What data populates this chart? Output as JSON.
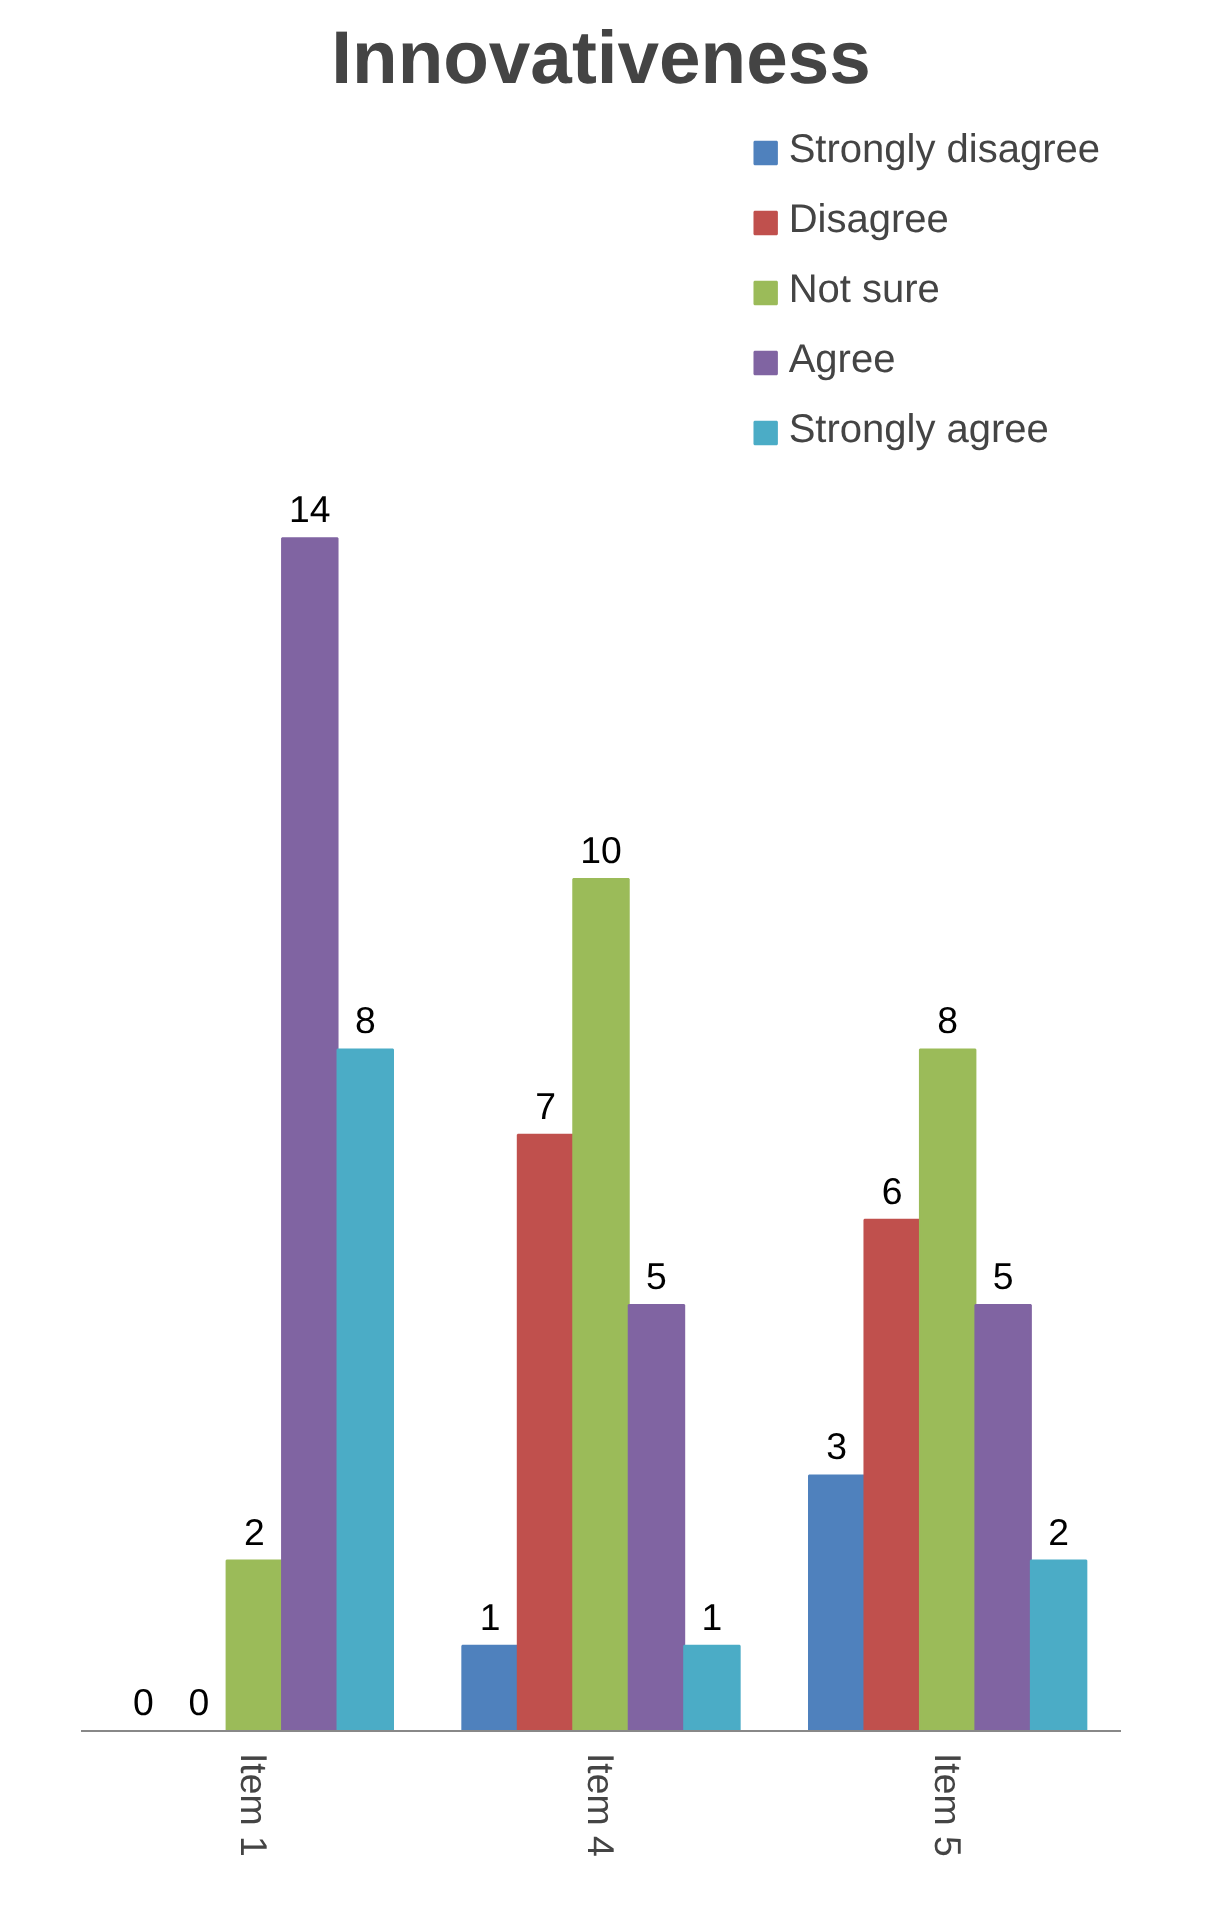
{
  "chart_data": {
    "type": "bar",
    "title": "Innovativeness",
    "categories": [
      "Item 1",
      "Item 4",
      "Item 5"
    ],
    "series": [
      {
        "name": "Strongly disagree",
        "color": "#4f81bd",
        "values": [
          0,
          1,
          3
        ]
      },
      {
        "name": "Disagree",
        "color": "#c0504d",
        "values": [
          0,
          7,
          6
        ]
      },
      {
        "name": "Not sure",
        "color": "#9bbb59",
        "values": [
          2,
          10,
          8
        ]
      },
      {
        "name": "Agree",
        "color": "#8064a2",
        "values": [
          14,
          5,
          5
        ]
      },
      {
        "name": "Strongly agree",
        "color": "#4bacc6",
        "values": [
          8,
          1,
          2
        ]
      }
    ],
    "data_labels": true,
    "grid": false,
    "legend": "top right"
  }
}
